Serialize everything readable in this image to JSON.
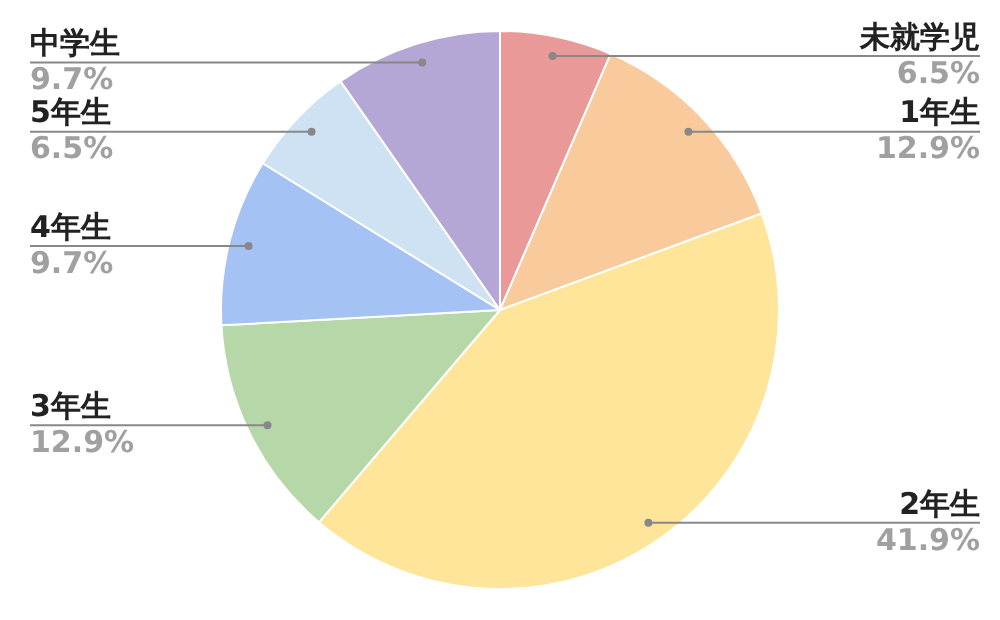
{
  "chart_data": {
    "type": "pie",
    "categories": [
      "未就学児",
      "1年生",
      "2年生",
      "3年生",
      "4年生",
      "5年生",
      "中学生"
    ],
    "values": [
      6.5,
      12.9,
      41.9,
      12.9,
      9.7,
      6.5,
      9.7
    ],
    "value_labels": [
      "6.5%",
      "12.9%",
      "41.9%",
      "12.9%",
      "9.7%",
      "6.5%",
      "9.7%"
    ],
    "colors": [
      "#ea9999",
      "#f9cb9c",
      "#ffe599",
      "#b6d7a8",
      "#a4c2f4",
      "#cfe2f3",
      "#b4a7d6"
    ],
    "legend": false
  }
}
